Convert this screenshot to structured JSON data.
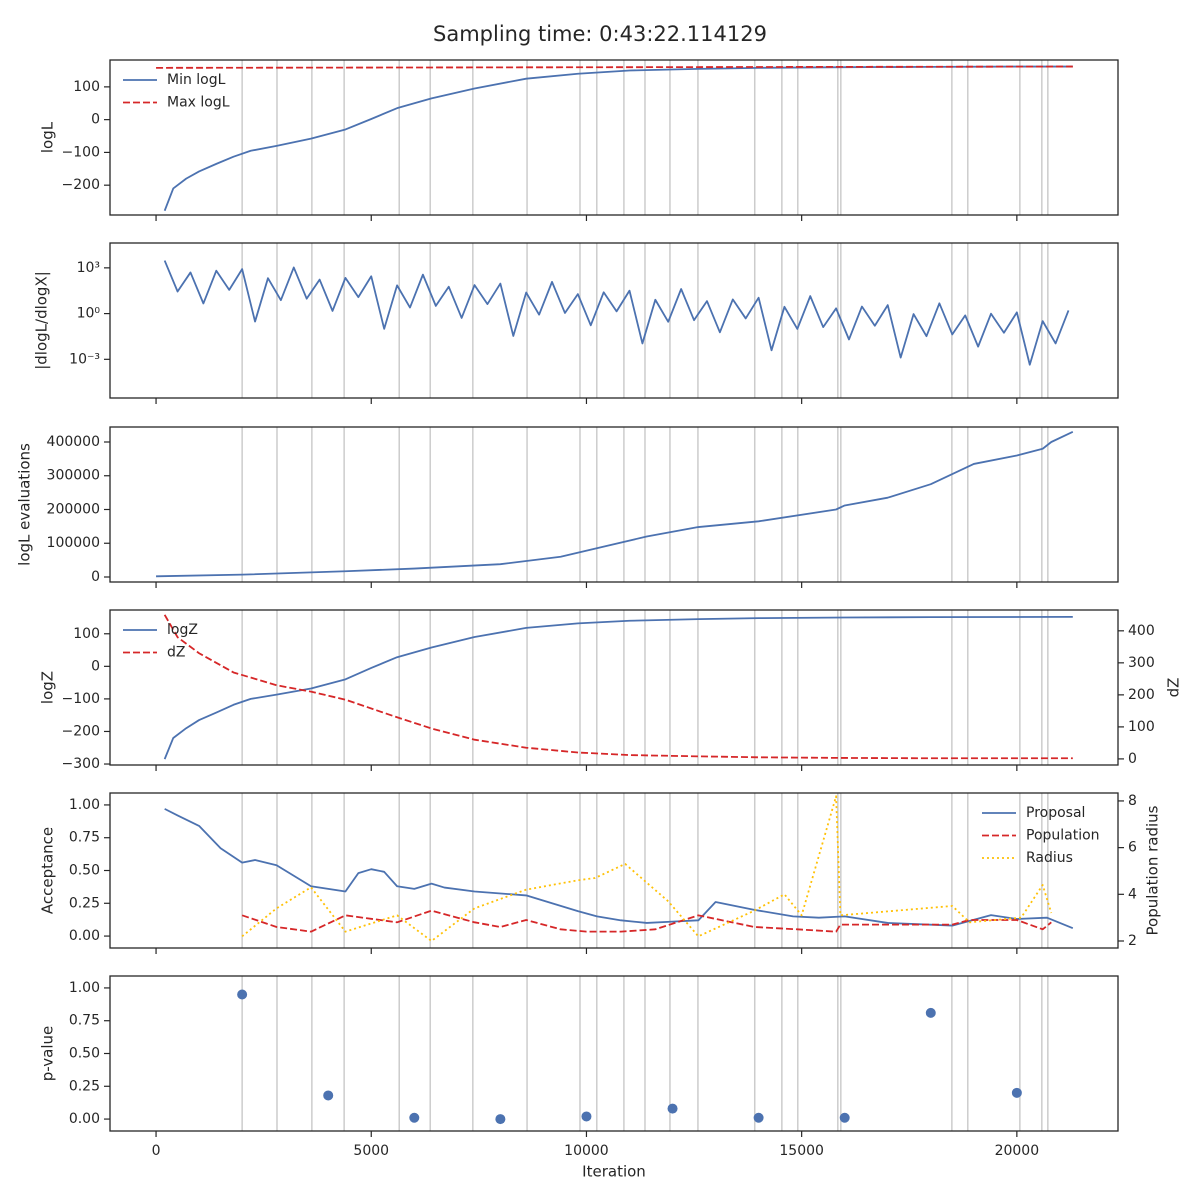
{
  "title": "Sampling time: 0:43:22.114129",
  "vlines": [
    2000,
    2810,
    3620,
    4370,
    5650,
    6370,
    7360,
    8620,
    9850,
    10240,
    10870,
    11360,
    11940,
    12590,
    13910,
    14540,
    14910,
    15840,
    15910,
    18490,
    18860,
    20070,
    20580,
    20720
  ],
  "chart_data": [
    {
      "type": "line",
      "ylabel": "logL",
      "xlim": [
        -1070,
        22350
      ],
      "xticks": [
        0,
        5000,
        10000,
        15000,
        20000
      ],
      "ylim": [
        -291,
        182
      ],
      "yticks": [
        {
          "value": -200,
          "label": "−200"
        },
        {
          "value": -100,
          "label": "−100"
        },
        0,
        100
      ],
      "legend": "upper-left",
      "series": [
        {
          "name": "Min logL",
          "color": "#4c72b0",
          "dash": "solid",
          "x": [
            200,
            400,
            700,
            1000,
            1400,
            1800,
            2200,
            2800,
            3600,
            4400,
            5000,
            5600,
            6400,
            7400,
            8600,
            9800,
            11000,
            12600,
            14000,
            16000,
            18000,
            20000,
            21300
          ],
          "values": [
            -278,
            -210,
            -180,
            -158,
            -135,
            -113,
            -95,
            -80,
            -58,
            -30,
            2,
            35,
            65,
            95,
            125,
            140,
            150,
            155,
            158,
            160,
            161,
            162,
            162
          ]
        },
        {
          "name": "Max logL",
          "color": "#d62728",
          "dash": "dashed",
          "x": [
            0,
            21300
          ],
          "values": [
            158,
            162
          ]
        }
      ]
    },
    {
      "type": "line",
      "ylabel": "|dlogL/dlogX|",
      "log": true,
      "xlim": [
        -1070,
        22350
      ],
      "xticks": [
        0,
        5000,
        10000,
        15000,
        20000
      ],
      "ylim": [
        2.9e-06,
        42700
      ],
      "yticks": [
        {
          "value": 0.001,
          "label": "10⁻³"
        },
        {
          "value": 1,
          "label": "10⁰"
        },
        {
          "value": 1000,
          "label": "10³"
        }
      ],
      "series": [
        {
          "color": "#4c72b0",
          "dash": "solid",
          "x": [
            200,
            500,
            800,
            1100,
            1400,
            1700,
            2000,
            2300,
            2600,
            2900,
            3200,
            3500,
            3800,
            4100,
            4400,
            4700,
            5000,
            5300,
            5600,
            5900,
            6200,
            6500,
            6800,
            7100,
            7400,
            7700,
            8000,
            8300,
            8600,
            8900,
            9200,
            9500,
            9800,
            10100,
            10400,
            10700,
            11000,
            11300,
            11600,
            11900,
            12200,
            12500,
            12800,
            13100,
            13400,
            13700,
            14000,
            14300,
            14600,
            14900,
            15200,
            15500,
            15800,
            16100,
            16400,
            16700,
            17000,
            17300,
            17600,
            17900,
            18200,
            18500,
            18800,
            19100,
            19400,
            19700,
            20000,
            20300,
            20600,
            20900,
            21200
          ],
          "values": [
            3000,
            28,
            500,
            4.6,
            650,
            36,
            830,
            0.3,
            210,
            7.6,
            1070,
            9.5,
            170,
            1.5,
            220,
            12,
            280,
            0.1,
            71,
            2.5,
            360,
            3.2,
            58,
            0.52,
            74,
            4.2,
            93,
            0.034,
            24,
            0.85,
            120,
            1.1,
            19,
            0.17,
            25,
            1.4,
            32,
            0.011,
            8.1,
            0.29,
            41,
            0.37,
            6.6,
            0.059,
            8.5,
            0.48,
            11,
            0.0039,
            2.8,
            0.098,
            14,
            0.13,
            2.2,
            0.02,
            2.9,
            0.16,
            3.6,
            0.0013,
            0.93,
            0.033,
            4.7,
            0.043,
            0.76,
            0.0068,
            0.98,
            0.055,
            1.2,
            0.00044,
            0.32,
            0.011,
            1.6
          ]
        }
      ]
    },
    {
      "type": "line",
      "ylabel": "logL evaluations",
      "xlim": [
        -1070,
        22350
      ],
      "xticks": [
        0,
        5000,
        10000,
        15000,
        20000
      ],
      "ylim": [
        -14815,
        444444
      ],
      "yticks": [
        0,
        100000,
        200000,
        300000,
        400000
      ],
      "series": [
        {
          "color": "#4c72b0",
          "dash": "solid",
          "x": [
            0,
            2000,
            4400,
            6000,
            8000,
            9400,
            10400,
            11400,
            12600,
            14000,
            15800,
            16000,
            17000,
            18000,
            19000,
            20000,
            20600,
            20800,
            21300
          ],
          "values": [
            2000,
            7000,
            17000,
            25000,
            38000,
            60000,
            90000,
            120000,
            148000,
            165000,
            200000,
            212000,
            235000,
            275000,
            335000,
            360000,
            380000,
            400000,
            430000
          ]
        }
      ]
    },
    {
      "type": "line",
      "ylabel": "logZ",
      "y2label": "dZ",
      "xlim": [
        -1070,
        22350
      ],
      "xticks": [
        0,
        5000,
        10000,
        15000,
        20000
      ],
      "ylim": [
        -303,
        173
      ],
      "yticks": [
        {
          "value": -300,
          "label": "−300"
        },
        {
          "value": -200,
          "label": "−200"
        },
        {
          "value": -100,
          "label": "−100"
        },
        0,
        100
      ],
      "y2lim": [
        -19,
        465
      ],
      "y2ticks": [
        0,
        100,
        200,
        300,
        400
      ],
      "legend": "upper-left",
      "series": [
        {
          "name": "logZ",
          "color": "#4c72b0",
          "dash": "solid",
          "x": [
            200,
            400,
            700,
            1000,
            1400,
            1800,
            2200,
            2800,
            3600,
            4400,
            5000,
            5600,
            6400,
            7400,
            8600,
            9800,
            11000,
            12600,
            14000,
            16000,
            18000,
            21300
          ],
          "values": [
            -285,
            -220,
            -190,
            -165,
            -142,
            -118,
            -100,
            -87,
            -68,
            -40,
            -5,
            28,
            58,
            90,
            118,
            132,
            140,
            145,
            148,
            150,
            151,
            152
          ]
        },
        {
          "name": "dZ",
          "color": "#d62728",
          "dash": "dashed",
          "axis": "y2",
          "x": [
            200,
            500,
            1000,
            1800,
            2800,
            3600,
            4400,
            5600,
            6400,
            7400,
            8600,
            9800,
            11000,
            12600,
            14000,
            16000,
            18000,
            21300
          ],
          "values": [
            450,
            380,
            330,
            270,
            230,
            210,
            185,
            130,
            95,
            60,
            35,
            20,
            12,
            8,
            5,
            3,
            2,
            2
          ]
        }
      ]
    },
    {
      "type": "line",
      "ylabel": "Acceptance",
      "y2label": "Population radius",
      "xlim": [
        -1070,
        22350
      ],
      "xticks": [
        0,
        5000,
        10000,
        15000,
        20000
      ],
      "ylim": [
        -0.091,
        1.091
      ],
      "yticks": [
        {
          "value": 0,
          "label": "0.00"
        },
        {
          "value": 0.25,
          "label": "0.25"
        },
        {
          "value": 0.5,
          "label": "0.50"
        },
        {
          "value": 0.75,
          "label": "0.75"
        },
        {
          "value": 1,
          "label": "1.00"
        }
      ],
      "y2lim": [
        1.7,
        8.34
      ],
      "y2ticks": [
        2,
        4,
        6,
        8
      ],
      "legend": "upper-right",
      "series": [
        {
          "name": "Proposal",
          "color": "#4c72b0",
          "dash": "solid",
          "x": [
            200,
            500,
            1000,
            1500,
            2000,
            2300,
            2800,
            3600,
            4400,
            4700,
            5000,
            5300,
            5600,
            6000,
            6400,
            6700,
            7400,
            8600,
            9200,
            9800,
            10244,
            10800,
            11400,
            12000,
            12600,
            13000,
            13900,
            14800,
            15400,
            16000,
            17000,
            18500,
            19400,
            20000,
            20700,
            21300
          ],
          "values": [
            0.97,
            0.92,
            0.84,
            0.67,
            0.56,
            0.58,
            0.54,
            0.38,
            0.34,
            0.48,
            0.51,
            0.49,
            0.38,
            0.36,
            0.4,
            0.37,
            0.34,
            0.31,
            0.25,
            0.19,
            0.15,
            0.12,
            0.1,
            0.11,
            0.12,
            0.26,
            0.2,
            0.15,
            0.14,
            0.15,
            0.1,
            0.08,
            0.16,
            0.13,
            0.14,
            0.06
          ]
        },
        {
          "name": "Population",
          "color": "#d62728",
          "dash": "dashed",
          "axis": "y2",
          "x": [
            2000,
            2800,
            3600,
            4400,
            5600,
            6400,
            7400,
            8000,
            8600,
            9400,
            10000,
            10800,
            11600,
            12600,
            13900,
            14900,
            15800,
            15900,
            18500,
            18900,
            20000,
            20600,
            20800
          ],
          "values": [
            3.1,
            2.6,
            2.4,
            3.1,
            2.8,
            3.3,
            2.8,
            2.6,
            2.9,
            2.5,
            2.4,
            2.4,
            2.5,
            3.1,
            2.6,
            2.5,
            2.4,
            2.7,
            2.7,
            2.9,
            2.9,
            2.5,
            2.8
          ]
        },
        {
          "name": "Radius",
          "color": "#ffc107",
          "dash": "dotted",
          "axis": "y2",
          "x": [
            2000,
            2800,
            3600,
            4400,
            5600,
            6400,
            7400,
            8600,
            9800,
            10200,
            10900,
            11900,
            12600,
            13900,
            14600,
            15000,
            15800,
            15900,
            18500,
            18900,
            20100,
            20600,
            20800
          ],
          "values": [
            2.2,
            3.4,
            4.3,
            2.4,
            3.1,
            2.0,
            3.4,
            4.2,
            4.6,
            4.7,
            5.3,
            3.7,
            2.2,
            3.3,
            4.0,
            3.1,
            8.2,
            3.1,
            3.5,
            2.8,
            3.0,
            4.4,
            3.2
          ]
        }
      ]
    },
    {
      "type": "scatter",
      "ylabel": "p-value",
      "xlabel": "Iteration",
      "xlim": [
        -1070,
        22350
      ],
      "xticks": [
        0,
        5000,
        10000,
        15000,
        20000
      ],
      "ylim": [
        -0.091,
        1.091
      ],
      "yticks": [
        {
          "value": 0,
          "label": "0.00"
        },
        {
          "value": 0.25,
          "label": "0.25"
        },
        {
          "value": 0.5,
          "label": "0.50"
        },
        {
          "value": 0.75,
          "label": "0.75"
        },
        {
          "value": 1,
          "label": "1.00"
        }
      ],
      "color": "#4c72b0",
      "x": [
        2000,
        4000,
        6000,
        8000,
        10000,
        12000,
        14000,
        16000,
        18000,
        20000
      ],
      "values": [
        0.95,
        0.18,
        0.01,
        0.0,
        0.02,
        0.08,
        0.01,
        0.01,
        0.81,
        0.2
      ]
    }
  ]
}
